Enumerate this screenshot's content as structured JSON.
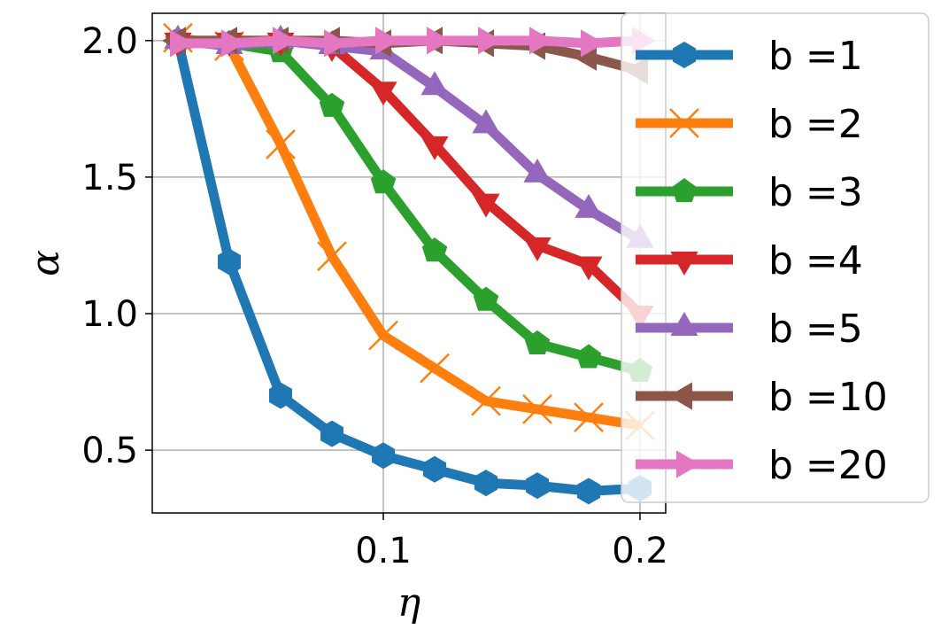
{
  "chart_data": {
    "type": "line",
    "title": "",
    "xlabel": "η",
    "ylabel": "α",
    "xlim": [
      0.01,
      0.21
    ],
    "ylim": [
      0.27,
      2.1
    ],
    "x_ticks": [
      {
        "value": 0.1,
        "label": "0.1"
      },
      {
        "value": 0.2,
        "label": "0.2"
      }
    ],
    "y_ticks": [
      {
        "value": 0.5,
        "label": "0.5"
      },
      {
        "value": 1.0,
        "label": "1.0"
      },
      {
        "value": 1.5,
        "label": "1.5"
      },
      {
        "value": 2.0,
        "label": "2.0"
      }
    ],
    "grid": true,
    "legend_position": "right",
    "x": [
      0.02,
      0.04,
      0.06,
      0.08,
      0.1,
      0.12,
      0.14,
      0.16,
      0.18,
      0.2
    ],
    "series": [
      {
        "name": "b =1",
        "color": "#1f77b4",
        "marker": "hexagon",
        "values": [
          2.0,
          1.19,
          0.7,
          0.56,
          0.48,
          0.43,
          0.38,
          0.37,
          0.35,
          0.36
        ]
      },
      {
        "name": "b =2",
        "color": "#ff7f0e",
        "marker": "x",
        "values": [
          2.01,
          1.98,
          1.62,
          1.21,
          0.92,
          0.8,
          0.68,
          0.65,
          0.62,
          0.59
        ]
      },
      {
        "name": "b =3",
        "color": "#2ca02c",
        "marker": "pentagon",
        "values": [
          2.0,
          1.99,
          1.96,
          1.76,
          1.48,
          1.23,
          1.05,
          0.89,
          0.84,
          0.79
        ]
      },
      {
        "name": "b =4",
        "color": "#d62728",
        "marker": "triangle-down",
        "values": [
          2.0,
          2.0,
          2.0,
          1.98,
          1.82,
          1.62,
          1.41,
          1.25,
          1.18,
          1.0
        ]
      },
      {
        "name": "b =5",
        "color": "#9467bd",
        "marker": "triangle-up",
        "values": [
          2.0,
          1.98,
          2.0,
          1.98,
          1.96,
          1.83,
          1.69,
          1.51,
          1.38,
          1.27
        ]
      },
      {
        "name": "b =10",
        "color": "#8c564b",
        "marker": "triangle-left",
        "values": [
          2.0,
          2.0,
          2.0,
          2.0,
          1.99,
          2.0,
          1.99,
          1.98,
          1.94,
          1.89
        ]
      },
      {
        "name": "b =20",
        "color": "#e377c2",
        "marker": "triangle-right",
        "values": [
          1.99,
          1.99,
          2.0,
          1.99,
          2.0,
          2.0,
          2.0,
          2.0,
          1.99,
          2.0
        ]
      }
    ]
  }
}
